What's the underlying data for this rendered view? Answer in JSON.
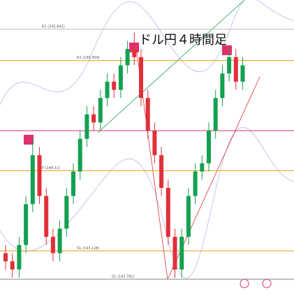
{
  "chart_data": {
    "type": "candlestick",
    "title": "ドル円４時間足",
    "ylim": [
      142.6,
      146.2
    ],
    "up_color": "#12a150",
    "down_color": "#e0303a",
    "levels": [
      {
        "value": 145.842,
        "label": "R1 (145.842)",
        "color": "#bbbbbb"
      },
      {
        "value": 145.459,
        "label": "R1 (145.459)",
        "color": "#f39c12"
      },
      {
        "value": 144.6,
        "color": "#e0306a"
      },
      {
        "value": 144.11,
        "label": "P (144.11)",
        "color": "#f39c12"
      },
      {
        "value": 143.128,
        "label": "S1 (143.128)",
        "color": "#f39c12"
      },
      {
        "value": 142.781,
        "label": "S1 (142.781)",
        "color": "#888888"
      }
    ],
    "open": [
      143.1,
      143.0,
      142.9,
      143.2,
      143.7,
      144.3,
      143.8,
      143.3,
      143.1,
      143.4,
      143.8,
      144.1,
      144.5,
      144.8,
      144.7,
      145.0,
      145.2,
      145.1,
      145.4,
      145.6,
      145.5,
      145.0,
      144.6,
      144.3,
      143.9,
      143.3,
      142.9,
      143.3,
      143.8,
      144.1,
      144.2,
      144.6,
      145.0,
      145.3,
      145.5,
      145.2
    ],
    "high": [
      143.2,
      143.1,
      143.3,
      143.8,
      144.5,
      144.4,
      143.9,
      143.4,
      143.5,
      143.9,
      144.2,
      144.6,
      144.9,
      144.9,
      145.1,
      145.3,
      145.3,
      145.5,
      145.7,
      145.8,
      145.6,
      145.1,
      144.7,
      144.4,
      144.0,
      143.4,
      143.4,
      143.9,
      144.2,
      144.3,
      144.7,
      145.1,
      145.4,
      145.6,
      145.6,
      145.5
    ],
    "low": [
      142.9,
      142.8,
      142.8,
      143.1,
      143.6,
      143.7,
      143.2,
      143.0,
      143.0,
      143.3,
      143.7,
      144.0,
      144.4,
      144.6,
      144.6,
      144.9,
      145.0,
      145.0,
      145.3,
      145.4,
      144.9,
      144.5,
      144.2,
      143.8,
      143.2,
      142.8,
      142.8,
      143.2,
      143.7,
      144.0,
      144.1,
      144.5,
      144.9,
      145.2,
      145.1,
      145.1
    ],
    "close": [
      143.0,
      142.9,
      143.2,
      143.7,
      144.3,
      143.8,
      143.3,
      143.1,
      143.4,
      143.8,
      144.1,
      144.5,
      144.8,
      144.7,
      145.0,
      145.2,
      145.1,
      145.4,
      145.6,
      145.5,
      145.0,
      144.6,
      144.3,
      143.9,
      143.3,
      142.9,
      143.3,
      143.8,
      144.1,
      144.2,
      144.6,
      145.0,
      145.3,
      145.5,
      145.2,
      145.4
    ]
  }
}
